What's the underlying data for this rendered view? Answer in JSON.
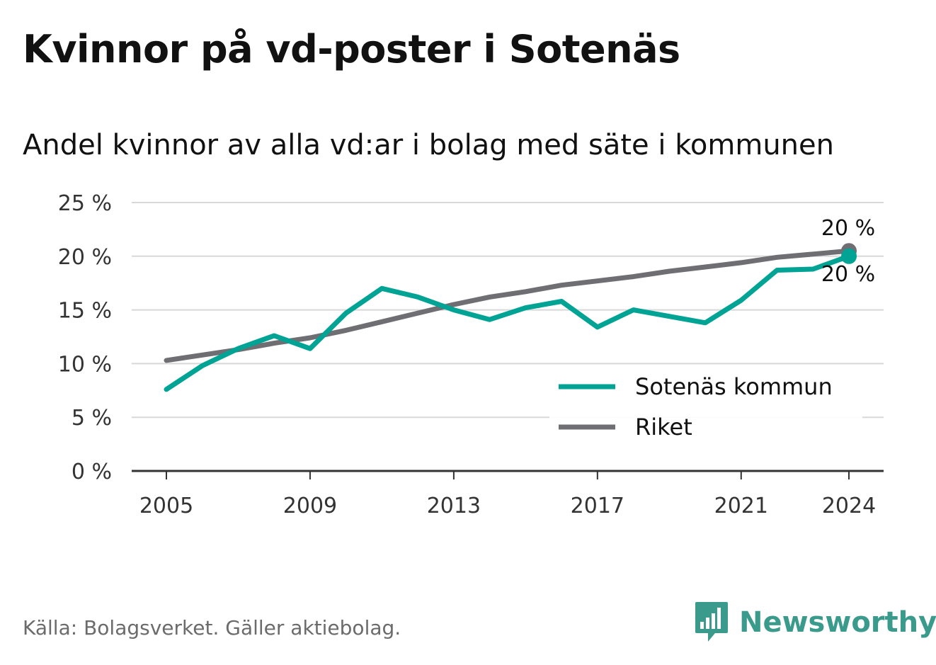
{
  "title": "Kvinnor på vd-poster i Sotenäs",
  "subtitle": "Andel kvinnor av alla vd:ar i bolag med säte i kommunen",
  "source": "Källa: Bolagsverket. Gäller aktiebolag.",
  "brand": "Newsworthy",
  "colors": {
    "sotenas": "#00a394",
    "riket": "#6e6e73",
    "grid": "#d8d8d8",
    "axis": "#333333",
    "brand": "#3a9a8c"
  },
  "chart_data": {
    "type": "line",
    "x": [
      2005,
      2006,
      2007,
      2008,
      2009,
      2010,
      2011,
      2012,
      2013,
      2014,
      2015,
      2016,
      2017,
      2018,
      2019,
      2020,
      2021,
      2022,
      2023,
      2024
    ],
    "series": [
      {
        "name": "Sotenäs kommun",
        "color": "#00a394",
        "values": [
          7.6,
          9.8,
          11.4,
          12.6,
          11.4,
          14.7,
          17.0,
          16.2,
          15.0,
          14.1,
          15.2,
          15.8,
          13.4,
          15.0,
          14.4,
          13.8,
          15.9,
          18.7,
          18.8,
          20.0
        ],
        "end_label": "20 %"
      },
      {
        "name": "Riket",
        "color": "#6e6e73",
        "values": [
          10.3,
          10.8,
          11.3,
          11.9,
          12.4,
          13.1,
          13.9,
          14.7,
          15.5,
          16.2,
          16.7,
          17.3,
          17.7,
          18.1,
          18.6,
          19.0,
          19.4,
          19.9,
          20.2,
          20.5
        ],
        "end_label": "20 %"
      }
    ],
    "yticks": [
      "0 %",
      "5 %",
      "10 %",
      "15 %",
      "20 %",
      "25 %"
    ],
    "ytick_values": [
      0,
      5,
      10,
      15,
      20,
      25
    ],
    "xticks": [
      "2005",
      "2009",
      "2013",
      "2017",
      "2021",
      "2024"
    ],
    "xtick_values": [
      2005,
      2009,
      2013,
      2017,
      2021,
      2024
    ],
    "ylim": [
      0,
      25
    ],
    "xlim": [
      2005,
      2024
    ],
    "grid": true,
    "legend_position": "bottom-right"
  }
}
